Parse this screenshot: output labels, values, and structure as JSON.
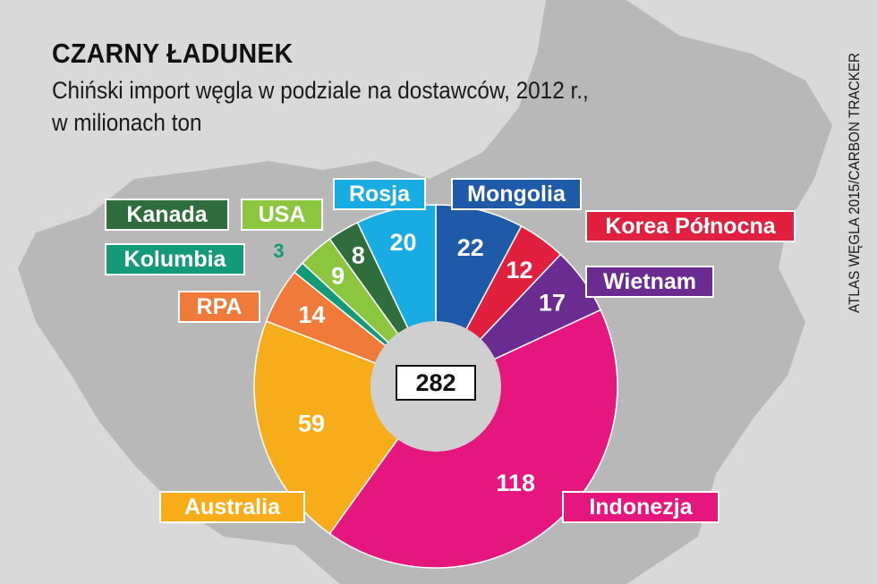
{
  "header": {
    "title": "CZARNY ŁADUNEK",
    "subtitle_line1": "Chiński import węgla w podziale na dostawców, 2012 r.,",
    "subtitle_line2": "w milionach ton"
  },
  "source": "ATLAS WĘGLA 2015/CARBON TRACKER",
  "chart_data": {
    "type": "pie",
    "title": "CZARNY ŁADUNEK",
    "subtitle": "Chiński import węgla w podziale na dostawców, 2012 r., w milionach ton",
    "total": 282,
    "donut": true,
    "slices": [
      {
        "name": "Mongolia",
        "value": 22,
        "color": "#1f5aa8"
      },
      {
        "name": "Korea Północna",
        "value": 12,
        "color": "#e0203e"
      },
      {
        "name": "Wietnam",
        "value": 17,
        "color": "#6a2c91"
      },
      {
        "name": "Indonezja",
        "value": 118,
        "color": "#e5167e"
      },
      {
        "name": "Australia",
        "value": 59,
        "color": "#f7ad19"
      },
      {
        "name": "RPA",
        "value": 14,
        "color": "#f07a3a"
      },
      {
        "name": "Kolumbia",
        "value": 3,
        "color": "#149a78"
      },
      {
        "name": "USA",
        "value": 9,
        "color": "#8cc63e"
      },
      {
        "name": "Kanada",
        "value": 8,
        "color": "#2f6e3c"
      },
      {
        "name": "Rosja",
        "value": 20,
        "color": "#19ace2"
      }
    ]
  }
}
